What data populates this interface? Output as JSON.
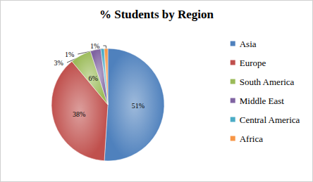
{
  "chart_data": {
    "type": "pie",
    "title": "% Students by Region",
    "categories": [
      "Asia",
      "Europe",
      "South America",
      "Middle East",
      "Central America",
      "Africa"
    ],
    "values": [
      51,
      38,
      6,
      3,
      1,
      1
    ],
    "value_labels": [
      "51%",
      "38%",
      "6%",
      "3%",
      "1%",
      "1%"
    ],
    "colors": [
      "#4f81bd",
      "#c0504d",
      "#9bbb59",
      "#8064a2",
      "#4bacc6",
      "#f79646"
    ],
    "data_labels": true,
    "legend": "right"
  }
}
